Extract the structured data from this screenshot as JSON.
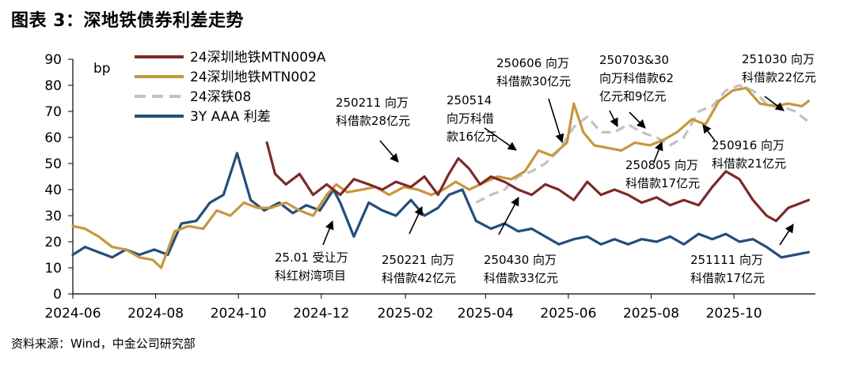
{
  "title": "图表 3：深地铁债券利差走势",
  "source": "资料来源：Wind，中金公司研究部",
  "chart_data": {
    "type": "line",
    "ylabel": "bp",
    "ylim": [
      0,
      90
    ],
    "y_ticks": [
      "0",
      "10",
      "20",
      "30",
      "40",
      "50",
      "60",
      "70",
      "80",
      "90"
    ],
    "x_range": [
      "2024-06-01",
      "2025-11-30"
    ],
    "x_ticks": [
      "2024-06",
      "2024-08",
      "2024-10",
      "2024-12",
      "2025-02",
      "2025-04",
      "2025-06",
      "2025-08",
      "2025-10"
    ],
    "x_tick_dates": [
      "2024-06-01",
      "2024-08-01",
      "2024-10-01",
      "2024-12-01",
      "2025-02-01",
      "2025-04-01",
      "2025-06-01",
      "2025-08-01",
      "2025-10-01"
    ],
    "series": [
      {
        "name": "24深圳地铁MTN009A",
        "color": "#7b2a28",
        "dashed": false,
        "points": [
          [
            "2024-10-22",
            58
          ],
          [
            "2024-10-28",
            46
          ],
          [
            "2024-11-05",
            42
          ],
          [
            "2024-11-15",
            46
          ],
          [
            "2024-11-25",
            38
          ],
          [
            "2024-12-05",
            42
          ],
          [
            "2024-12-15",
            38
          ],
          [
            "2024-12-25",
            44
          ],
          [
            "2025-01-05",
            42
          ],
          [
            "2025-01-15",
            40
          ],
          [
            "2025-01-25",
            43
          ],
          [
            "2025-02-05",
            41
          ],
          [
            "2025-02-15",
            45
          ],
          [
            "2025-02-25",
            38
          ],
          [
            "2025-03-05",
            46
          ],
          [
            "2025-03-12",
            52
          ],
          [
            "2025-03-20",
            48
          ],
          [
            "2025-03-28",
            42
          ],
          [
            "2025-04-05",
            45
          ],
          [
            "2025-04-15",
            43
          ],
          [
            "2025-04-25",
            40
          ],
          [
            "2025-05-05",
            38
          ],
          [
            "2025-05-15",
            42
          ],
          [
            "2025-05-25",
            40
          ],
          [
            "2025-06-05",
            36
          ],
          [
            "2025-06-15",
            43
          ],
          [
            "2025-06-25",
            38
          ],
          [
            "2025-07-05",
            40
          ],
          [
            "2025-07-15",
            38
          ],
          [
            "2025-07-25",
            35
          ],
          [
            "2025-08-05",
            37
          ],
          [
            "2025-08-15",
            34
          ],
          [
            "2025-08-25",
            36
          ],
          [
            "2025-09-05",
            34
          ],
          [
            "2025-09-15",
            41
          ],
          [
            "2025-09-25",
            47
          ],
          [
            "2025-10-05",
            44
          ],
          [
            "2025-10-15",
            36
          ],
          [
            "2025-10-25",
            30
          ],
          [
            "2025-11-01",
            28
          ],
          [
            "2025-11-10",
            33
          ],
          [
            "2025-11-20",
            35
          ],
          [
            "2025-11-25",
            36
          ]
        ]
      },
      {
        "name": "24深圳地铁MTN002",
        "color": "#c8963e",
        "dashed": false,
        "points": [
          [
            "2024-06-01",
            26
          ],
          [
            "2024-06-10",
            25
          ],
          [
            "2024-06-20",
            22
          ],
          [
            "2024-06-30",
            18
          ],
          [
            "2024-07-10",
            17
          ],
          [
            "2024-07-20",
            14
          ],
          [
            "2024-07-30",
            13
          ],
          [
            "2024-08-05",
            10
          ],
          [
            "2024-08-15",
            24
          ],
          [
            "2024-08-25",
            26
          ],
          [
            "2024-09-05",
            25
          ],
          [
            "2024-09-15",
            32
          ],
          [
            "2024-09-25",
            30
          ],
          [
            "2024-10-05",
            35
          ],
          [
            "2024-10-15",
            33
          ],
          [
            "2024-10-25",
            33
          ],
          [
            "2024-11-05",
            35
          ],
          [
            "2024-11-15",
            32
          ],
          [
            "2024-11-25",
            30
          ],
          [
            "2024-12-05",
            38
          ],
          [
            "2024-12-12",
            42
          ],
          [
            "2024-12-20",
            39
          ],
          [
            "2024-12-31",
            40
          ],
          [
            "2025-01-10",
            41
          ],
          [
            "2025-01-20",
            38
          ],
          [
            "2025-01-31",
            41
          ],
          [
            "2025-02-10",
            40
          ],
          [
            "2025-02-20",
            38
          ],
          [
            "2025-03-01",
            40
          ],
          [
            "2025-03-10",
            43
          ],
          [
            "2025-03-20",
            40
          ],
          [
            "2025-04-01",
            43
          ],
          [
            "2025-04-10",
            45
          ],
          [
            "2025-04-20",
            44
          ],
          [
            "2025-04-30",
            47
          ],
          [
            "2025-05-10",
            55
          ],
          [
            "2025-05-20",
            53
          ],
          [
            "2025-05-31",
            58
          ],
          [
            "2025-06-05",
            73
          ],
          [
            "2025-06-12",
            62
          ],
          [
            "2025-06-20",
            57
          ],
          [
            "2025-06-30",
            56
          ],
          [
            "2025-07-10",
            55
          ],
          [
            "2025-07-20",
            58
          ],
          [
            "2025-07-31",
            57
          ],
          [
            "2025-08-10",
            59
          ],
          [
            "2025-08-20",
            62
          ],
          [
            "2025-08-31",
            67
          ],
          [
            "2025-09-10",
            65
          ],
          [
            "2025-09-20",
            74
          ],
          [
            "2025-09-30",
            78
          ],
          [
            "2025-10-10",
            79
          ],
          [
            "2025-10-20",
            73
          ],
          [
            "2025-10-31",
            72
          ],
          [
            "2025-11-10",
            73
          ],
          [
            "2025-11-20",
            72
          ],
          [
            "2025-11-25",
            74
          ]
        ]
      },
      {
        "name": "24深铁08",
        "color": "#c2c2c2",
        "dashed": true,
        "points": [
          [
            "2025-03-25",
            35
          ],
          [
            "2025-04-05",
            38
          ],
          [
            "2025-04-15",
            40
          ],
          [
            "2025-04-25",
            45
          ],
          [
            "2025-05-05",
            47
          ],
          [
            "2025-05-15",
            50
          ],
          [
            "2025-05-25",
            55
          ],
          [
            "2025-06-05",
            64
          ],
          [
            "2025-06-15",
            68
          ],
          [
            "2025-06-25",
            62
          ],
          [
            "2025-07-05",
            62
          ],
          [
            "2025-07-15",
            65
          ],
          [
            "2025-07-25",
            62
          ],
          [
            "2025-08-05",
            60
          ],
          [
            "2025-08-15",
            57
          ],
          [
            "2025-08-25",
            60
          ],
          [
            "2025-09-05",
            70
          ],
          [
            "2025-09-15",
            72
          ],
          [
            "2025-09-25",
            78
          ],
          [
            "2025-10-05",
            80
          ],
          [
            "2025-10-15",
            78
          ],
          [
            "2025-10-25",
            73
          ],
          [
            "2025-11-05",
            72
          ],
          [
            "2025-11-15",
            70
          ],
          [
            "2025-11-25",
            66
          ]
        ]
      },
      {
        "name": "3Y AAA 利差",
        "color": "#244e7a",
        "dashed": false,
        "points": [
          [
            "2024-06-01",
            15
          ],
          [
            "2024-06-10",
            18
          ],
          [
            "2024-06-20",
            16
          ],
          [
            "2024-06-30",
            14
          ],
          [
            "2024-07-10",
            17
          ],
          [
            "2024-07-20",
            15
          ],
          [
            "2024-07-31",
            17
          ],
          [
            "2024-08-10",
            15
          ],
          [
            "2024-08-20",
            27
          ],
          [
            "2024-08-31",
            28
          ],
          [
            "2024-09-10",
            35
          ],
          [
            "2024-09-20",
            38
          ],
          [
            "2024-09-30",
            54
          ],
          [
            "2024-10-10",
            36
          ],
          [
            "2024-10-20",
            32
          ],
          [
            "2024-10-31",
            35
          ],
          [
            "2024-11-10",
            31
          ],
          [
            "2024-11-20",
            34
          ],
          [
            "2024-11-30",
            32
          ],
          [
            "2024-12-10",
            40
          ],
          [
            "2024-12-15",
            35
          ],
          [
            "2024-12-25",
            22
          ],
          [
            "2025-01-05",
            35
          ],
          [
            "2025-01-15",
            32
          ],
          [
            "2025-01-25",
            30
          ],
          [
            "2025-02-05",
            36
          ],
          [
            "2025-02-15",
            30
          ],
          [
            "2025-02-25",
            33
          ],
          [
            "2025-03-05",
            38
          ],
          [
            "2025-03-15",
            40
          ],
          [
            "2025-03-25",
            28
          ],
          [
            "2025-04-05",
            25
          ],
          [
            "2025-04-15",
            27
          ],
          [
            "2025-04-25",
            24
          ],
          [
            "2025-05-05",
            25
          ],
          [
            "2025-05-15",
            22
          ],
          [
            "2025-05-25",
            19
          ],
          [
            "2025-06-05",
            21
          ],
          [
            "2025-06-15",
            22
          ],
          [
            "2025-06-25",
            19
          ],
          [
            "2025-07-05",
            21
          ],
          [
            "2025-07-15",
            19
          ],
          [
            "2025-07-25",
            21
          ],
          [
            "2025-08-05",
            20
          ],
          [
            "2025-08-15",
            22
          ],
          [
            "2025-08-25",
            19
          ],
          [
            "2025-09-05",
            23
          ],
          [
            "2025-09-15",
            21
          ],
          [
            "2025-09-25",
            23
          ],
          [
            "2025-10-05",
            20
          ],
          [
            "2025-10-15",
            21
          ],
          [
            "2025-10-25",
            18
          ],
          [
            "2025-11-05",
            14
          ],
          [
            "2025-11-15",
            15
          ],
          [
            "2025-11-25",
            16
          ]
        ]
      }
    ],
    "annotations": [
      {
        "lines": [
          "250211 向万",
          "科借款28亿元"
        ]
      },
      {
        "lines": [
          "250514",
          "向万科借",
          "款16亿元"
        ]
      },
      {
        "lines": [
          "250606 向万",
          "科借款30亿元"
        ]
      },
      {
        "lines": [
          "250703&30",
          "向万科借款62",
          "亿元和9亿元"
        ]
      },
      {
        "lines": [
          "251030 向万",
          "科借款22亿元"
        ]
      },
      {
        "lines": [
          "250916 向万",
          "科借款21亿元"
        ]
      },
      {
        "lines": [
          "250805 向万",
          "科借款17亿元"
        ]
      },
      {
        "lines": [
          "25.01 受让万",
          "科红树湾项目"
        ]
      },
      {
        "lines": [
          "250221 向万",
          "科借款42亿元"
        ]
      },
      {
        "lines": [
          "250430 向万",
          "科借款33亿元"
        ]
      },
      {
        "lines": [
          "251111 向万",
          "科借款17亿元"
        ]
      }
    ]
  }
}
